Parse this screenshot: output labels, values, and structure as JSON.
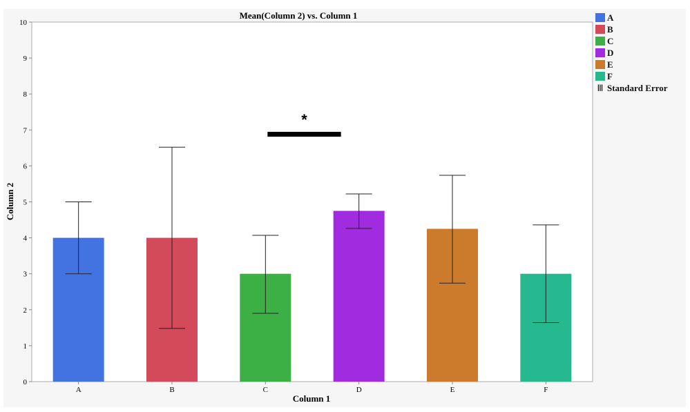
{
  "chart_data": {
    "type": "bar",
    "title": "Mean(Column 2) vs. Column 1",
    "xlabel": "Column 1",
    "ylabel": "Column 2",
    "ylim": [
      0,
      10
    ],
    "yticks": [
      "0",
      "1",
      "2",
      "3",
      "4",
      "5",
      "6",
      "7",
      "8",
      "9",
      "10"
    ],
    "categories": [
      "A",
      "B",
      "C",
      "D",
      "E",
      "F"
    ],
    "values": [
      4.0,
      4.0,
      3.0,
      4.75,
      4.25,
      3.0
    ],
    "error_low": [
      3.0,
      1.48,
      1.9,
      4.26,
      2.74,
      1.64
    ],
    "error_high": [
      5.0,
      6.52,
      4.07,
      5.22,
      5.74,
      4.36
    ],
    "colors": [
      "#4373e0",
      "#d34a5b",
      "#3db045",
      "#a02bdf",
      "#cc7a2c",
      "#26b88f"
    ],
    "grid": false,
    "legend": {
      "position": "right",
      "entries": [
        "A",
        "B",
        "C",
        "D",
        "E",
        "F"
      ],
      "error_label": "Standard Error"
    },
    "annotation": {
      "text": "*",
      "from": "C",
      "to": "D",
      "y": 6.87
    }
  }
}
